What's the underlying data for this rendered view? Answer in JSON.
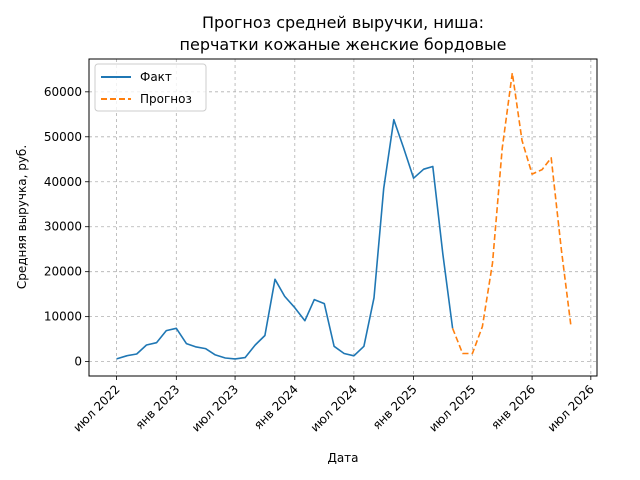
{
  "chart_data": {
    "type": "line",
    "title_lines": [
      "Прогноз средней выручки, ниша:",
      "перчатки кожаные женские бордовые"
    ],
    "xlabel": "Дата",
    "ylabel": "Средняя выручка, руб.",
    "x_tick_labels": [
      {
        "date": "2022-07-01",
        "label": "июл 2022"
      },
      {
        "date": "2023-01-01",
        "label": "янв 2023"
      },
      {
        "date": "2023-07-01",
        "label": "июл 2023"
      },
      {
        "date": "2024-01-01",
        "label": "янв 2024"
      },
      {
        "date": "2024-07-01",
        "label": "июл 2024"
      },
      {
        "date": "2025-01-01",
        "label": "янв 2025"
      },
      {
        "date": "2025-07-01",
        "label": "июл 2025"
      },
      {
        "date": "2026-01-01",
        "label": "янв 2026"
      },
      {
        "date": "2026-07-01",
        "label": "июл 2026"
      }
    ],
    "y_ticks": [
      0,
      10000,
      20000,
      30000,
      40000,
      50000,
      60000
    ],
    "x_range": [
      "2022-04-07",
      "2026-07-20"
    ],
    "y_range": [
      -3200,
      67300
    ],
    "grid": true,
    "legend_position": "top-left",
    "series": [
      {
        "name": "Факт",
        "color": "#1f77b4",
        "style": "solid",
        "points": [
          {
            "x": "2022-07-01",
            "y": 600
          },
          {
            "x": "2022-08-01",
            "y": 1300
          },
          {
            "x": "2022-09-01",
            "y": 1700
          },
          {
            "x": "2022-10-01",
            "y": 3700
          },
          {
            "x": "2022-11-01",
            "y": 4200
          },
          {
            "x": "2022-12-01",
            "y": 6900
          },
          {
            "x": "2023-01-01",
            "y": 7400
          },
          {
            "x": "2023-02-01",
            "y": 4000
          },
          {
            "x": "2023-03-01",
            "y": 3300
          },
          {
            "x": "2023-04-01",
            "y": 2900
          },
          {
            "x": "2023-05-01",
            "y": 1500
          },
          {
            "x": "2023-06-01",
            "y": 800
          },
          {
            "x": "2023-07-01",
            "y": 600
          },
          {
            "x": "2023-08-01",
            "y": 900
          },
          {
            "x": "2023-09-01",
            "y": 3700
          },
          {
            "x": "2023-10-01",
            "y": 5800
          },
          {
            "x": "2023-11-01",
            "y": 18300
          },
          {
            "x": "2023-12-01",
            "y": 14500
          },
          {
            "x": "2024-01-01",
            "y": 12000
          },
          {
            "x": "2024-02-01",
            "y": 9100
          },
          {
            "x": "2024-03-01",
            "y": 13800
          },
          {
            "x": "2024-04-01",
            "y": 12900
          },
          {
            "x": "2024-05-01",
            "y": 3400
          },
          {
            "x": "2024-06-01",
            "y": 1800
          },
          {
            "x": "2024-07-01",
            "y": 1300
          },
          {
            "x": "2024-08-01",
            "y": 3400
          },
          {
            "x": "2024-09-01",
            "y": 14200
          },
          {
            "x": "2024-10-01",
            "y": 38500
          },
          {
            "x": "2024-11-01",
            "y": 53800
          },
          {
            "x": "2024-12-01",
            "y": 47600
          },
          {
            "x": "2025-01-01",
            "y": 40800
          },
          {
            "x": "2025-02-01",
            "y": 42800
          },
          {
            "x": "2025-03-01",
            "y": 43400
          },
          {
            "x": "2025-04-01",
            "y": 24000
          },
          {
            "x": "2025-05-01",
            "y": 7400
          }
        ]
      },
      {
        "name": "Прогноз",
        "color": "#ff7f0e",
        "style": "dashed",
        "points": [
          {
            "x": "2025-05-01",
            "y": 7400
          },
          {
            "x": "2025-06-01",
            "y": 1800
          },
          {
            "x": "2025-07-01",
            "y": 1800
          },
          {
            "x": "2025-08-01",
            "y": 7800
          },
          {
            "x": "2025-09-01",
            "y": 21900
          },
          {
            "x": "2025-10-01",
            "y": 47400
          },
          {
            "x": "2025-11-01",
            "y": 64200
          },
          {
            "x": "2025-12-01",
            "y": 49200
          },
          {
            "x": "2026-01-01",
            "y": 41700
          },
          {
            "x": "2026-02-01",
            "y": 42700
          },
          {
            "x": "2026-03-01",
            "y": 45300
          },
          {
            "x": "2026-04-01",
            "y": 25000
          },
          {
            "x": "2026-05-01",
            "y": 7800
          }
        ]
      }
    ]
  }
}
